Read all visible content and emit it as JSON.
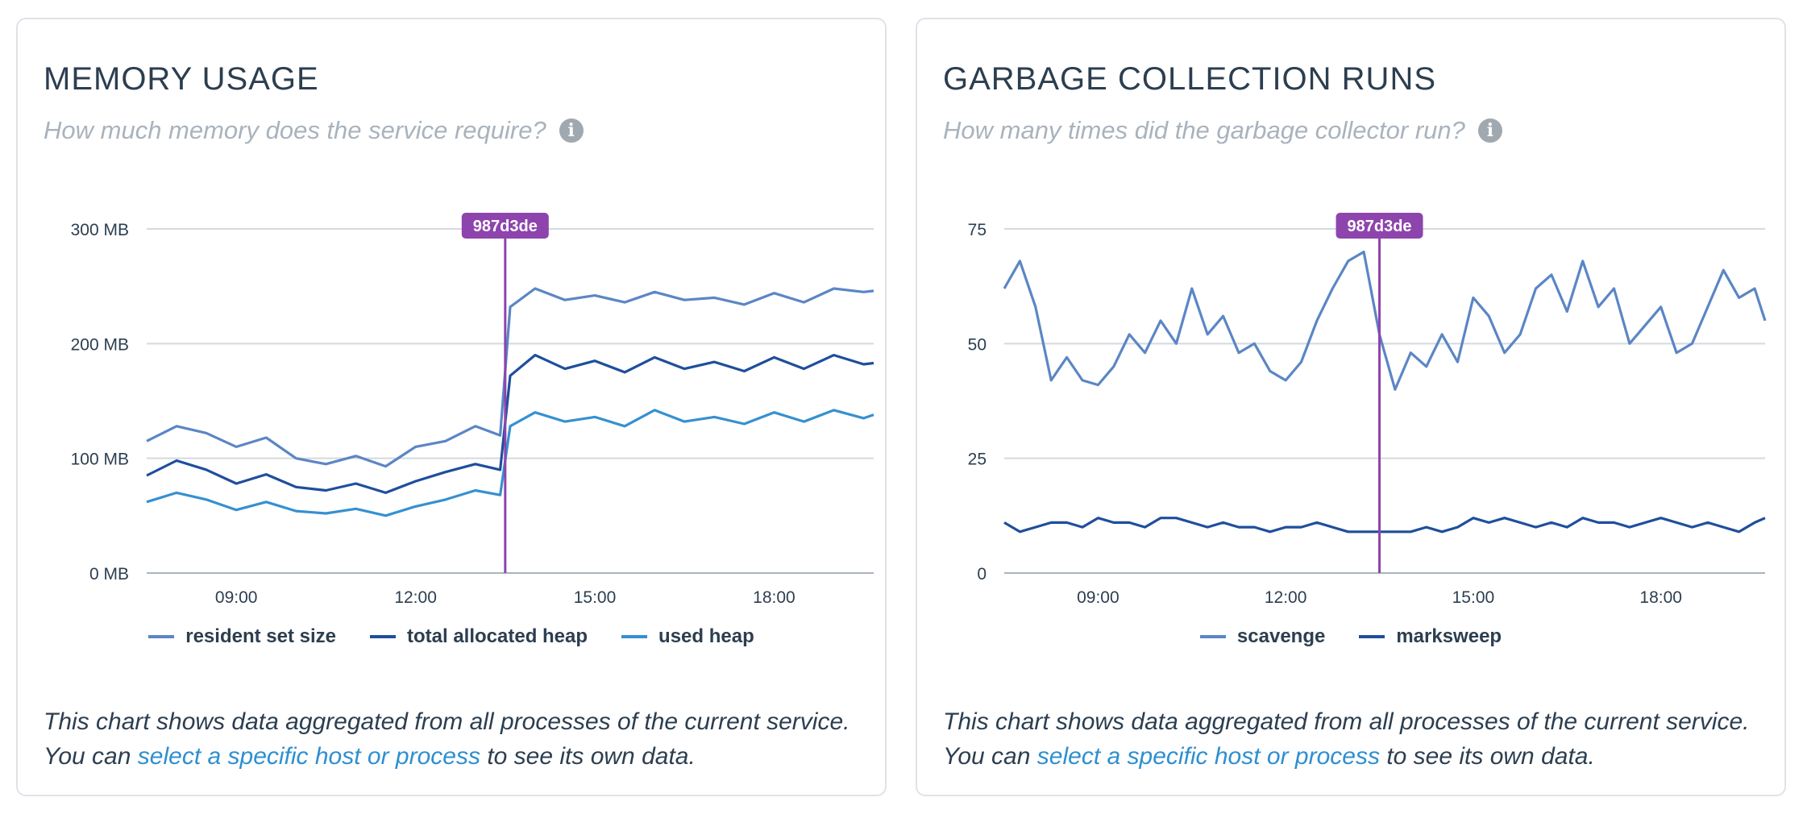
{
  "panels": [
    {
      "title": "MEMORY USAGE",
      "subtitle": "How much memory does the service require?",
      "note": {
        "line1": "This chart shows data aggregated from all processes of the current service.",
        "line2_prefix": "You can",
        "link": "select a specific host or process",
        "line2_suffix": "to see its own data."
      }
    },
    {
      "title": "GARBAGE COLLECTION RUNS",
      "subtitle": "How many times did the garbage collector run?",
      "note": {
        "line1": "This chart shows data aggregated from all processes of the current service.",
        "line2_prefix": "You can",
        "link": "select a specific host or process",
        "line2_suffix": "to see its own data."
      }
    }
  ],
  "chart_data": [
    {
      "type": "line",
      "xlabel": "",
      "ylabel": "",
      "x_range": [
        "07:30",
        "19:40"
      ],
      "x_ticks": [
        "09:00",
        "12:00",
        "15:00",
        "18:00"
      ],
      "ylim": [
        0,
        300
      ],
      "y_ticks": [
        0,
        100,
        200,
        300
      ],
      "y_tick_labels": [
        "0 MB",
        "100 MB",
        "200 MB",
        "300 MB"
      ],
      "grid": true,
      "legend": "bottom-center",
      "marker": {
        "label": "987d3de",
        "x": "13:30",
        "color": "#8e44ad"
      },
      "x": [
        "07:30",
        "08:00",
        "08:30",
        "09:00",
        "09:30",
        "10:00",
        "10:30",
        "11:00",
        "11:30",
        "12:00",
        "12:30",
        "13:00",
        "13:25",
        "13:35",
        "14:00",
        "14:30",
        "15:00",
        "15:30",
        "16:00",
        "16:30",
        "17:00",
        "17:30",
        "18:00",
        "18:30",
        "19:00",
        "19:30",
        "19:40"
      ],
      "series": [
        {
          "name": "resident set size",
          "color": "#5b86c5",
          "values": [
            115,
            128,
            122,
            110,
            118,
            100,
            95,
            102,
            93,
            110,
            115,
            128,
            120,
            232,
            248,
            238,
            242,
            236,
            245,
            238,
            240,
            234,
            244,
            236,
            248,
            245,
            246
          ]
        },
        {
          "name": "total allocated heap",
          "color": "#1f4e9c",
          "values": [
            85,
            98,
            90,
            78,
            86,
            75,
            72,
            78,
            70,
            80,
            88,
            95,
            90,
            172,
            190,
            178,
            185,
            175,
            188,
            178,
            184,
            176,
            188,
            178,
            190,
            182,
            183
          ]
        },
        {
          "name": "used heap",
          "color": "#3690d0",
          "values": [
            62,
            70,
            64,
            55,
            62,
            54,
            52,
            56,
            50,
            58,
            64,
            72,
            68,
            128,
            140,
            132,
            136,
            128,
            142,
            132,
            136,
            130,
            140,
            132,
            142,
            135,
            138
          ]
        }
      ]
    },
    {
      "type": "line",
      "xlabel": "",
      "ylabel": "",
      "x_range": [
        "07:30",
        "19:40"
      ],
      "x_ticks": [
        "09:00",
        "12:00",
        "15:00",
        "18:00"
      ],
      "ylim": [
        0,
        75
      ],
      "y_ticks": [
        0,
        25,
        50,
        75
      ],
      "y_tick_labels": [
        "0",
        "25",
        "50",
        "75"
      ],
      "grid": true,
      "legend": "bottom-center",
      "marker": {
        "label": "987d3de",
        "x": "13:30",
        "color": "#8e44ad"
      },
      "x": [
        "07:30",
        "07:45",
        "08:00",
        "08:15",
        "08:30",
        "08:45",
        "09:00",
        "09:15",
        "09:30",
        "09:45",
        "10:00",
        "10:15",
        "10:30",
        "10:45",
        "11:00",
        "11:15",
        "11:30",
        "11:45",
        "12:00",
        "12:15",
        "12:30",
        "12:45",
        "13:00",
        "13:15",
        "13:30",
        "13:45",
        "14:00",
        "14:15",
        "14:30",
        "14:45",
        "15:00",
        "15:15",
        "15:30",
        "15:45",
        "16:00",
        "16:15",
        "16:30",
        "16:45",
        "17:00",
        "17:15",
        "17:30",
        "17:45",
        "18:00",
        "18:15",
        "18:30",
        "18:45",
        "19:00",
        "19:15",
        "19:30",
        "19:40"
      ],
      "series": [
        {
          "name": "scavenge",
          "color": "#5b86c5",
          "values": [
            62,
            68,
            58,
            42,
            47,
            42,
            41,
            45,
            52,
            48,
            55,
            50,
            62,
            52,
            56,
            48,
            50,
            44,
            42,
            46,
            55,
            62,
            68,
            70,
            52,
            40,
            48,
            45,
            52,
            46,
            60,
            56,
            48,
            52,
            62,
            65,
            57,
            68,
            58,
            62,
            50,
            54,
            58,
            48,
            50,
            58,
            66,
            60,
            62,
            55
          ]
        },
        {
          "name": "marksweep",
          "color": "#1f4e9c",
          "values": [
            11,
            9,
            10,
            11,
            11,
            10,
            12,
            11,
            11,
            10,
            12,
            12,
            11,
            10,
            11,
            10,
            10,
            9,
            10,
            10,
            11,
            10,
            9,
            9,
            9,
            9,
            9,
            10,
            9,
            10,
            12,
            11,
            12,
            11,
            10,
            11,
            10,
            12,
            11,
            11,
            10,
            11,
            12,
            11,
            10,
            11,
            10,
            9,
            11,
            12
          ]
        }
      ]
    }
  ]
}
